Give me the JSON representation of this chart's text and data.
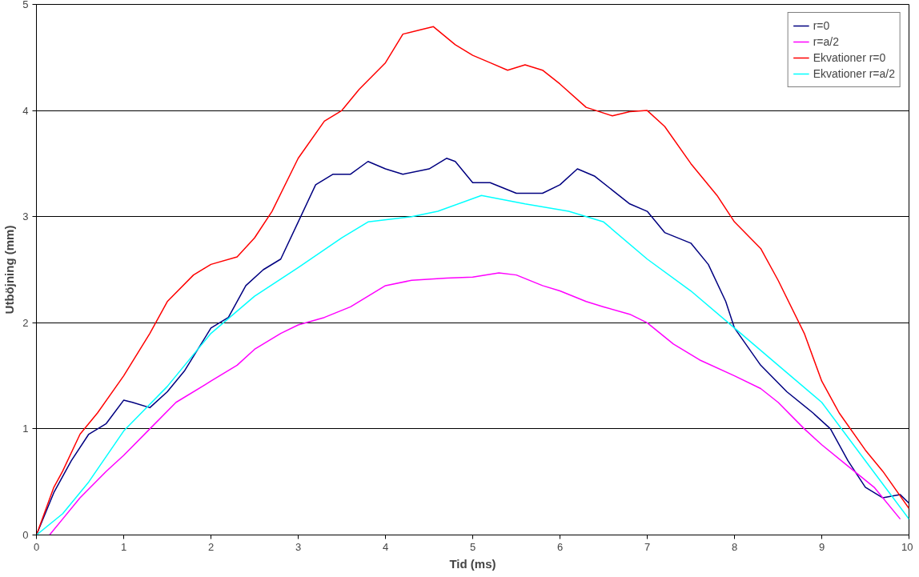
{
  "chart_data": {
    "type": "line",
    "xlabel": "Tid (ms)",
    "ylabel": "Utböjning (mm)",
    "xlim": [
      0,
      10
    ],
    "ylim": [
      0,
      5
    ],
    "xticks": [
      0,
      1,
      2,
      3,
      4,
      5,
      6,
      7,
      8,
      9,
      10
    ],
    "yticks": [
      0,
      1,
      2,
      3,
      4,
      5
    ],
    "grid": "y",
    "legend": "top right",
    "series": [
      {
        "name": "r=0",
        "color": "#000080",
        "x": [
          0,
          0.2,
          0.4,
          0.6,
          0.8,
          1,
          1.1,
          1.3,
          1.5,
          1.7,
          2,
          2.2,
          2.4,
          2.6,
          2.8,
          3,
          3.2,
          3.4,
          3.6,
          3.8,
          4,
          4.2,
          4.5,
          4.7,
          4.8,
          5,
          5.2,
          5.5,
          5.8,
          6,
          6.2,
          6.4,
          6.6,
          6.8,
          7,
          7.2,
          7.5,
          7.7,
          7.9,
          8,
          8.3,
          8.6,
          8.9,
          9.1,
          9.3,
          9.5,
          9.7,
          9.9,
          10
        ],
        "values": [
          0,
          0.4,
          0.7,
          0.95,
          1.05,
          1.27,
          1.25,
          1.2,
          1.35,
          1.55,
          1.95,
          2.05,
          2.35,
          2.5,
          2.6,
          2.95,
          3.3,
          3.4,
          3.4,
          3.52,
          3.45,
          3.4,
          3.45,
          3.55,
          3.52,
          3.32,
          3.32,
          3.22,
          3.22,
          3.3,
          3.45,
          3.38,
          3.25,
          3.12,
          3.05,
          2.85,
          2.75,
          2.55,
          2.2,
          1.95,
          1.6,
          1.35,
          1.15,
          1.0,
          0.7,
          0.45,
          0.35,
          0.38,
          0.3
        ]
      },
      {
        "name": "r=a/2",
        "color": "#ff00ff",
        "x": [
          0.15,
          0.3,
          0.5,
          0.8,
          1,
          1.3,
          1.6,
          2,
          2.3,
          2.5,
          2.8,
          3,
          3.3,
          3.6,
          4,
          4.3,
          4.7,
          5,
          5.3,
          5.5,
          5.8,
          6,
          6.3,
          6.5,
          6.8,
          7,
          7.3,
          7.6,
          8,
          8.3,
          8.5,
          8.8,
          9,
          9.3,
          9.6,
          9.9
        ],
        "values": [
          0,
          0.15,
          0.35,
          0.6,
          0.75,
          1.0,
          1.25,
          1.45,
          1.6,
          1.75,
          1.9,
          1.98,
          2.05,
          2.15,
          2.35,
          2.4,
          2.42,
          2.43,
          2.47,
          2.45,
          2.35,
          2.3,
          2.2,
          2.15,
          2.08,
          2.0,
          1.8,
          1.65,
          1.5,
          1.38,
          1.25,
          1.0,
          0.85,
          0.65,
          0.45,
          0.15
        ]
      },
      {
        "name": "Ekvationer r=0",
        "color": "#ff0000",
        "x": [
          0,
          0.2,
          0.3,
          0.5,
          0.7,
          1,
          1.3,
          1.5,
          1.8,
          2,
          2.3,
          2.5,
          2.7,
          3,
          3.3,
          3.5,
          3.7,
          4,
          4.2,
          4.4,
          4.55,
          4.8,
          5,
          5.2,
          5.4,
          5.6,
          5.8,
          6,
          6.3,
          6.6,
          6.8,
          7,
          7.2,
          7.5,
          7.8,
          8,
          8.3,
          8.5,
          8.8,
          9,
          9.2,
          9.5,
          9.7,
          10
        ],
        "values": [
          0,
          0.45,
          0.6,
          0.95,
          1.15,
          1.5,
          1.9,
          2.2,
          2.45,
          2.55,
          2.62,
          2.8,
          3.05,
          3.55,
          3.9,
          4.0,
          4.2,
          4.45,
          4.72,
          4.76,
          4.79,
          4.62,
          4.52,
          4.45,
          4.38,
          4.43,
          4.38,
          4.25,
          4.03,
          3.95,
          3.99,
          4.0,
          3.85,
          3.5,
          3.2,
          2.95,
          2.7,
          2.4,
          1.9,
          1.45,
          1.15,
          0.8,
          0.6,
          0.25
        ]
      },
      {
        "name": "Ekvationer r=a/2",
        "color": "#00ffff",
        "x": [
          0,
          0.3,
          0.6,
          1,
          1.5,
          2,
          2.5,
          3,
          3.5,
          3.8,
          4.3,
          4.6,
          5.1,
          5.6,
          6.1,
          6.5,
          7,
          7.5,
          8,
          8.5,
          9,
          9.5,
          10
        ],
        "values": [
          0,
          0.2,
          0.5,
          0.98,
          1.4,
          1.9,
          2.25,
          2.52,
          2.8,
          2.95,
          3.0,
          3.05,
          3.2,
          3.12,
          3.05,
          2.95,
          2.6,
          2.3,
          1.95,
          1.6,
          1.25,
          0.7,
          0.15
        ]
      }
    ]
  }
}
